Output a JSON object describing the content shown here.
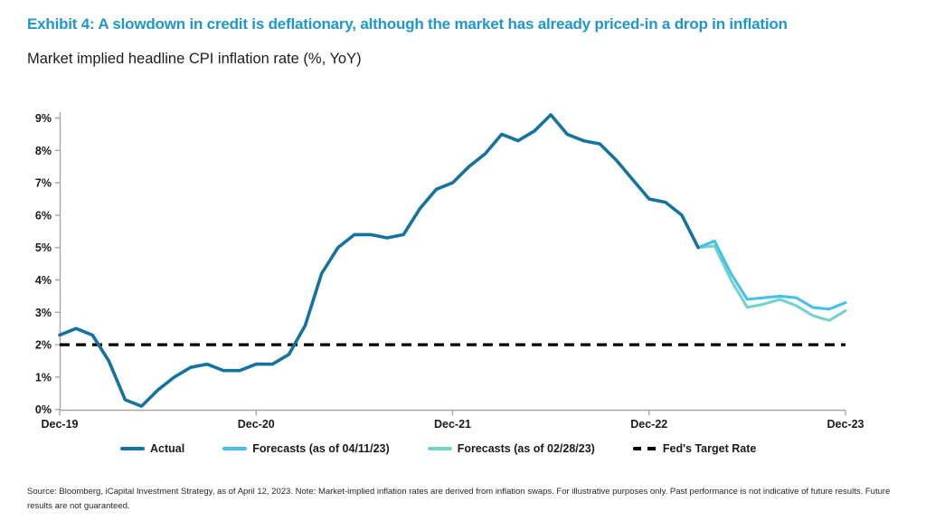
{
  "header": {
    "title": "Exhibit 4: A slowdown in credit is deflationary, although the market has already priced-in a drop in inflation",
    "subtitle": "Market implied headline CPI inflation rate (%, YoY)"
  },
  "colors": {
    "title_blue": "#1F96CD",
    "actual_line": "#15739E",
    "forecast_apr_line": "#47C0EA",
    "forecast_feb_line": "#74D2C9",
    "fed_target_line": "#000000",
    "axis_gray": "#A6A6A6",
    "text_dark": "#1A1A1A"
  },
  "chart_data": {
    "type": "line",
    "title": "Market implied headline CPI inflation rate (%, YoY)",
    "xlabel": "",
    "ylabel": "",
    "ylim": [
      0,
      9
    ],
    "x_months_total": 48,
    "x_start": "Dec-19",
    "x_tick_labels": [
      "Dec-19",
      "Dec-20",
      "Dec-21",
      "Dec-22",
      "Dec-23"
    ],
    "x_tick_month_index": [
      0,
      12,
      24,
      36,
      48
    ],
    "y_tick_labels": [
      "0%",
      "1%",
      "2%",
      "3%",
      "4%",
      "5%",
      "6%",
      "7%",
      "8%",
      "9%"
    ],
    "grid": false,
    "legend_position": "bottom",
    "series": [
      {
        "id": "actual",
        "name": "Actual",
        "color": "#15739E",
        "style": "solid",
        "start_month_index": 0,
        "values": [
          2.3,
          2.5,
          2.3,
          1.5,
          0.3,
          0.1,
          0.6,
          1.0,
          1.3,
          1.4,
          1.2,
          1.2,
          1.4,
          1.4,
          1.7,
          2.6,
          4.2,
          5.0,
          5.4,
          5.4,
          5.3,
          5.4,
          6.2,
          6.8,
          7.0,
          7.5,
          7.9,
          8.5,
          8.3,
          8.6,
          9.1,
          8.5,
          8.3,
          8.2,
          7.7,
          7.1,
          6.5,
          6.4,
          6.0,
          5.0
        ]
      },
      {
        "id": "forecast-04-11-23",
        "name": "Forecasts (as of 04/11/23)",
        "color": "#47C0EA",
        "style": "solid",
        "start_month_index": 39,
        "values": [
          5.0,
          5.2,
          4.2,
          3.4,
          3.45,
          3.5,
          3.45,
          3.15,
          3.1,
          3.3
        ]
      },
      {
        "id": "forecast-02-28-23",
        "name": "Forecasts (as of 02/28/23)",
        "color": "#74D2C9",
        "style": "solid",
        "start_month_index": 39,
        "values": [
          5.0,
          5.05,
          4.0,
          3.15,
          3.25,
          3.4,
          3.2,
          2.9,
          2.75,
          3.05
        ]
      },
      {
        "id": "fed-target-rate",
        "name": "Fed's Target Rate",
        "color": "#000000",
        "style": "dashed",
        "constant_value": 2.0
      }
    ]
  },
  "footer": {
    "source": "Source: Bloomberg, iCapital Investment Strategy, as of April 12, 2023. Note: Market-implied inflation rates are derived from inflation swaps. For illustrative purposes only. Past performance is not indicative of future results. Future results are not guaranteed."
  }
}
